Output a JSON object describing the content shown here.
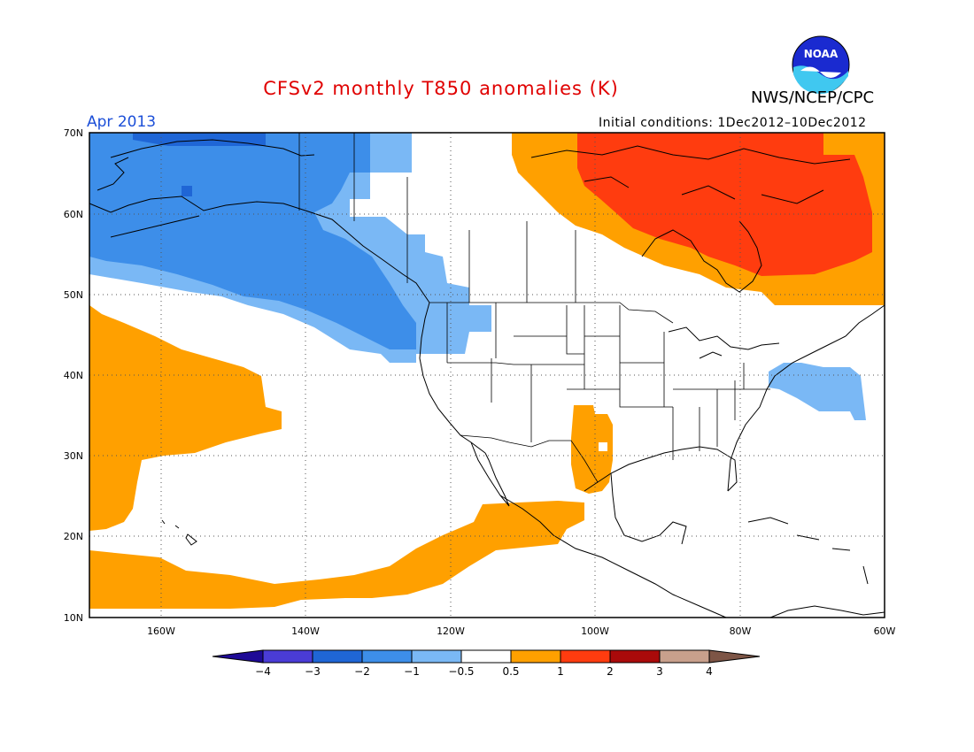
{
  "header": {
    "title": "CFSv2 monthly T850 anomalies (K)",
    "title_color": "#e00000",
    "org": "NWS/NCEP/CPC",
    "valid_month": "Apr 2013",
    "valid_color": "#1c4fd8",
    "initial_conditions": "Initial conditions: 1Dec2012–10Dec2012",
    "logo_text": "NOAA"
  },
  "map": {
    "lat_ticks": [
      "70N",
      "60N",
      "50N",
      "40N",
      "30N",
      "20N",
      "10N"
    ],
    "lon_ticks": [
      "160W",
      "140W",
      "120W",
      "100W",
      "80W",
      "60W"
    ],
    "lat_range": [
      10,
      70
    ],
    "lon_range": [
      -170,
      -60
    ],
    "grid": "dotted"
  },
  "colorbar": {
    "labels": [
      "−4",
      "−3",
      "−2",
      "−1",
      "−0.5",
      "0.5",
      "1",
      "2",
      "3",
      "4"
    ],
    "colors": [
      "#1e0a96",
      "#4a3cd6",
      "#1f66d6",
      "#3d8ee9",
      "#7ab8f5",
      "#ffffff",
      "#ffa000",
      "#ff3c0f",
      "#aa0a0a",
      "#c8a08c",
      "#7d5546"
    ]
  },
  "anomaly_colors": {
    "minus2_to_minus1": "#3d8ee9",
    "minus1_to_minus05": "#7ab8f5",
    "minus3_to_minus2": "#1f66d6",
    "plus05_to_1": "#ffa000",
    "plus1_to_2": "#ff3c0f"
  }
}
